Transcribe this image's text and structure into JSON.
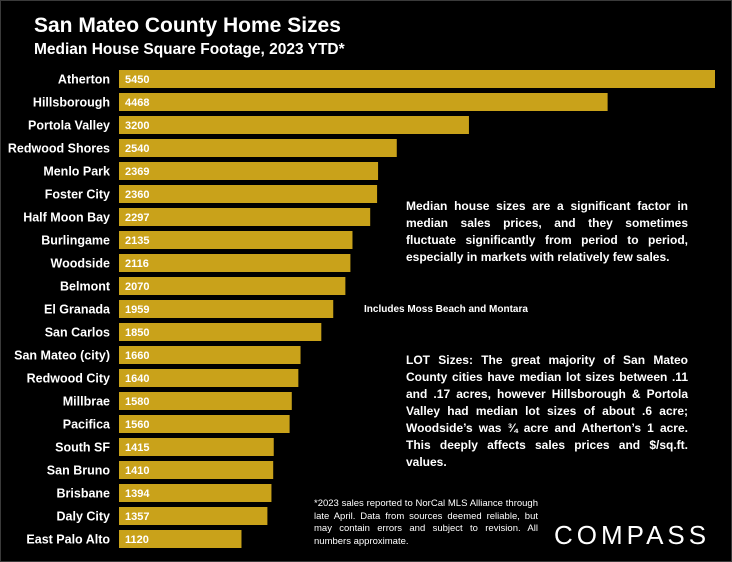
{
  "title": "San Mateo County Home Sizes",
  "subtitle": "Median House Square Footage, 2023 YTD*",
  "notes": {
    "median": "Median house sizes are a significant factor in median sales prices, and they sometimes fluctuate significantly from period to period, especially in markets with relatively few sales.",
    "el_granada": "Includes Moss Beach and Montara",
    "lot": "LOT Sizes: The great majority of San Mateo County cities have median lot sizes between .11 and .17 acres, however Hillsborough & Portola Valley had median lot sizes of about .6 acre; Woodside’s was ¾ acre and Atherton’s 1 acre. This deeply affects sales prices and $/sq.ft. values.",
    "footnote": "*2023 sales reported to NorCal MLS Alliance through late April. Data from sources deemed reliable, but may contain errors and subject to revision. All numbers approximate."
  },
  "logo": "COMPASS",
  "colors": {
    "bar": "#C9A21A",
    "background": "#000000",
    "text": "#FFFFFF"
  },
  "chart_data": {
    "type": "bar",
    "orientation": "horizontal",
    "title": "San Mateo County Home Sizes",
    "subtitle": "Median House Square Footage, 2023 YTD*",
    "categories": [
      "Atherton",
      "Hillsborough",
      "Portola Valley",
      "Redwood Shores",
      "Menlo Park",
      "Foster City",
      "Half Moon Bay",
      "Burlingame",
      "Woodside",
      "Belmont",
      "El Granada",
      "San Carlos",
      "San Mateo (city)",
      "Redwood City",
      "Millbrae",
      "Pacifica",
      "South SF",
      "San Bruno",
      "Brisbane",
      "Daly City",
      "East Palo Alto"
    ],
    "values": [
      5450,
      4468,
      3200,
      2540,
      2369,
      2360,
      2297,
      2135,
      2116,
      2070,
      1959,
      1850,
      1660,
      1640,
      1580,
      1560,
      1415,
      1410,
      1394,
      1357,
      1120
    ],
    "xlim": [
      0,
      5450
    ],
    "grid": false,
    "legend": "none"
  }
}
